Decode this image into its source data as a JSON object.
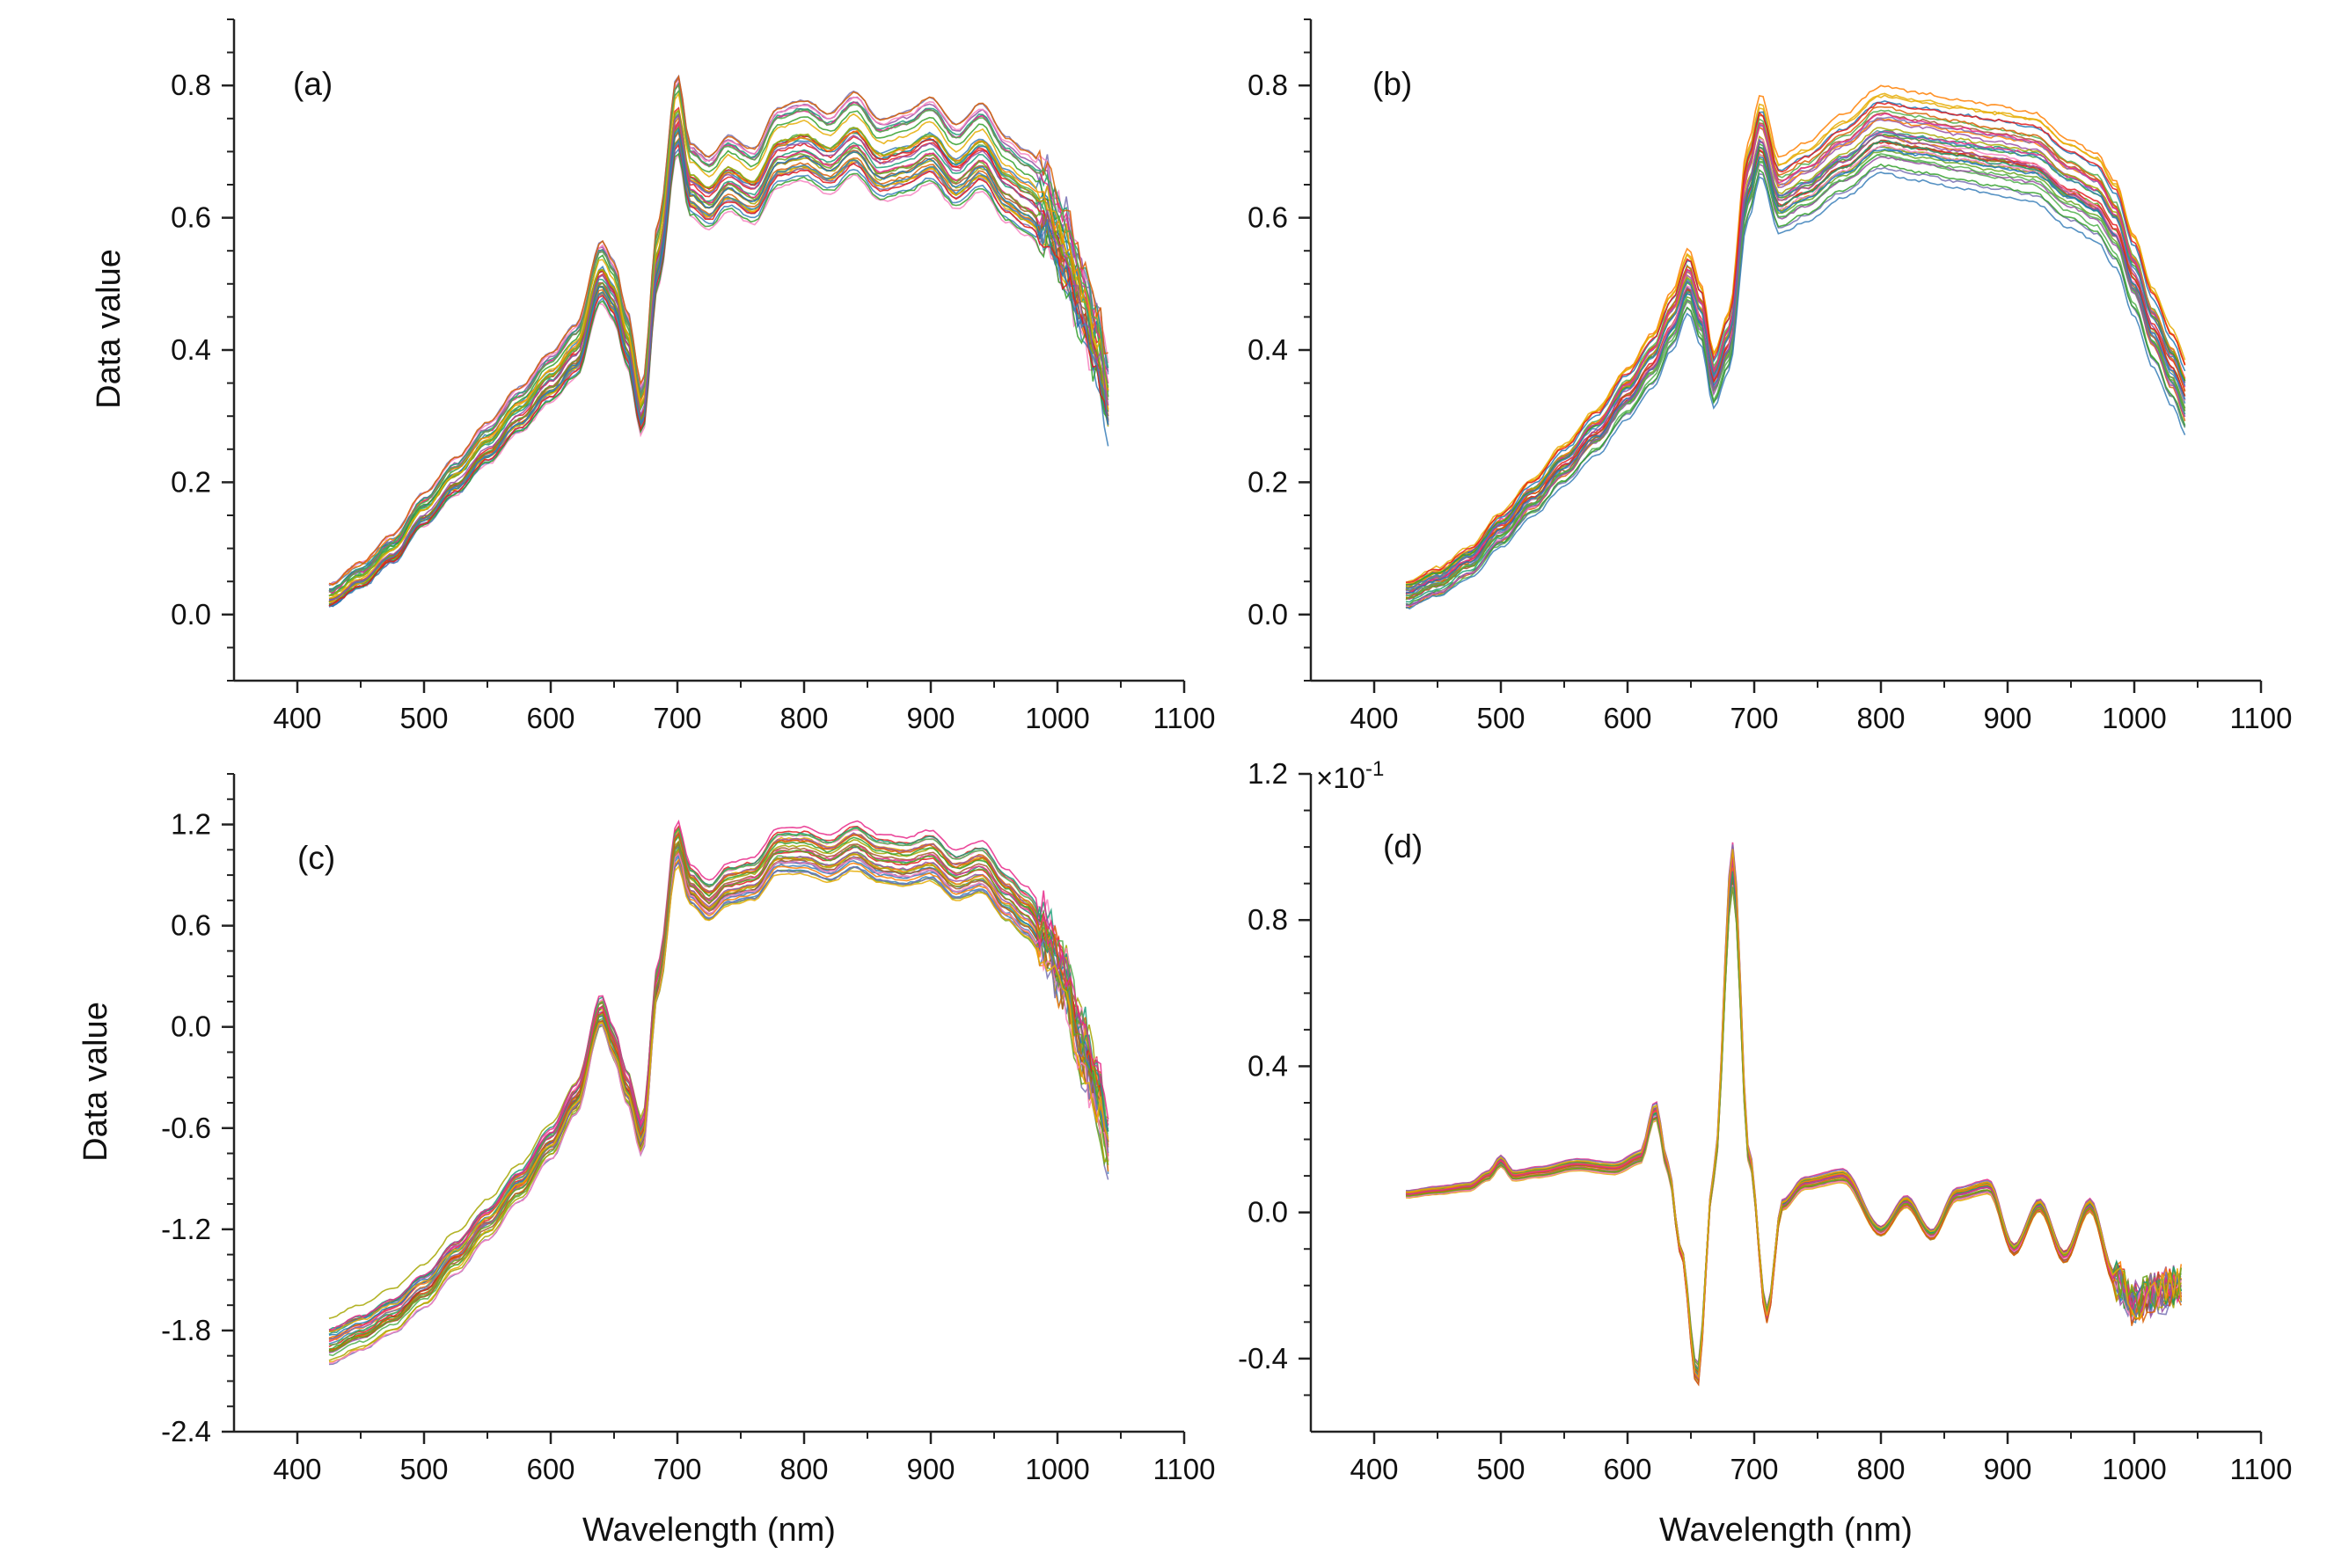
{
  "figure": {
    "x_axis_title": "Wavelength (nm)",
    "y_axis_title": "Data value"
  },
  "chart_data": [
    {
      "id": "a",
      "type": "line",
      "panel_label": "(a)",
      "xlabel": "",
      "ylabel": "Data value",
      "xlim": [
        350,
        1100
      ],
      "ylim": [
        -0.1,
        0.9
      ],
      "xticks": [
        "400",
        "500",
        "600",
        "700",
        "800",
        "900",
        "1000",
        "1100"
      ],
      "yticks": [
        "0.0",
        "0.2",
        "0.4",
        "0.6",
        "0.8"
      ],
      "ytick_values": [
        0.0,
        0.2,
        0.4,
        0.6,
        0.8
      ],
      "x_range_data": [
        425,
        1042
      ],
      "series_count": 36,
      "spread": 0.05,
      "noise_end": 0.04,
      "series_colors": [
        "#e41a1c",
        "#377eb8",
        "#4daf4a",
        "#984ea3",
        "#ff7f00",
        "#a6a600",
        "#a65628",
        "#f781bf",
        "#1b9e77",
        "#d95f02",
        "#7570b3",
        "#e7298a",
        "#66a61e",
        "#e6ab02",
        "#1f78b4",
        "#33a02c"
      ],
      "mean_profile": {
        "x": [
          425,
          450,
          475,
          500,
          525,
          550,
          575,
          600,
          620,
          640,
          650,
          660,
          672,
          685,
          700,
          710,
          725,
          740,
          760,
          780,
          800,
          820,
          840,
          860,
          880,
          900,
          920,
          940,
          960,
          975,
          990,
          1005,
          1020,
          1030,
          1042
        ],
        "y": [
          0.03,
          0.06,
          0.1,
          0.16,
          0.21,
          0.26,
          0.31,
          0.36,
          0.4,
          0.52,
          0.49,
          0.42,
          0.31,
          0.55,
          0.76,
          0.66,
          0.64,
          0.67,
          0.65,
          0.71,
          0.72,
          0.7,
          0.73,
          0.69,
          0.7,
          0.72,
          0.68,
          0.71,
          0.66,
          0.64,
          0.62,
          0.56,
          0.48,
          0.42,
          0.32
        ]
      }
    },
    {
      "id": "b",
      "type": "line",
      "panel_label": "(b)",
      "xlabel": "",
      "ylabel": "",
      "xlim": [
        350,
        1100
      ],
      "ylim": [
        -0.1,
        0.9
      ],
      "xticks": [
        "400",
        "500",
        "600",
        "700",
        "800",
        "900",
        "1000",
        "1100"
      ],
      "yticks": [
        "0.0",
        "0.2",
        "0.4",
        "0.6",
        "0.8"
      ],
      "ytick_values": [
        0.0,
        0.2,
        0.4,
        0.6,
        0.8
      ],
      "x_range_data": [
        425,
        1042
      ],
      "series_count": 36,
      "spread": 0.05,
      "noise_end": 0.0,
      "series_colors": [
        "#e41a1c",
        "#377eb8",
        "#4daf4a",
        "#984ea3",
        "#ff7f00",
        "#a6a600",
        "#a65628",
        "#f781bf",
        "#1b9e77",
        "#d95f02",
        "#7570b3",
        "#e7298a",
        "#66a61e",
        "#e6ab02",
        "#1f78b4",
        "#33a02c"
      ],
      "mean_profile": {
        "x": [
          425,
          450,
          475,
          500,
          525,
          550,
          575,
          600,
          620,
          635,
          648,
          658,
          668,
          680,
          695,
          705,
          720,
          740,
          770,
          800,
          830,
          860,
          890,
          920,
          950,
          970,
          985,
          1000,
          1015,
          1030,
          1042
        ],
        "y": [
          0.03,
          0.05,
          0.08,
          0.13,
          0.18,
          0.23,
          0.28,
          0.34,
          0.39,
          0.45,
          0.51,
          0.46,
          0.36,
          0.42,
          0.66,
          0.73,
          0.64,
          0.66,
          0.7,
          0.74,
          0.73,
          0.72,
          0.71,
          0.7,
          0.66,
          0.64,
          0.6,
          0.52,
          0.44,
          0.38,
          0.33
        ]
      }
    },
    {
      "id": "c",
      "type": "line",
      "panel_label": "(c)",
      "xlabel": "Wavelength (nm)",
      "ylabel": "Data value",
      "xlim": [
        350,
        1100
      ],
      "ylim": [
        -2.4,
        1.5
      ],
      "xticks": [
        "400",
        "500",
        "600",
        "700",
        "800",
        "900",
        "1000",
        "1100"
      ],
      "yticks": [
        "-2.4",
        "-1.8",
        "-1.2",
        "-0.6",
        "0.0",
        "0.6",
        "1.2"
      ],
      "ytick_values": [
        -2.4,
        -1.8,
        -1.2,
        -0.6,
        0.0,
        0.6,
        1.2
      ],
      "x_range_data": [
        425,
        1042
      ],
      "series_count": 30,
      "spread": 0.15,
      "noise_end": 0.25,
      "series_colors": [
        "#e41a1c",
        "#377eb8",
        "#4daf4a",
        "#984ea3",
        "#ff7f00",
        "#a6a600",
        "#a65628",
        "#f781bf",
        "#1b9e77",
        "#d95f02",
        "#7570b3",
        "#e7298a",
        "#66a61e",
        "#e6ab02",
        "#1f78b4",
        "#33a02c"
      ],
      "mean_profile": {
        "x": [
          425,
          450,
          475,
          500,
          525,
          550,
          575,
          600,
          620,
          640,
          650,
          660,
          672,
          685,
          700,
          710,
          725,
          740,
          760,
          780,
          800,
          820,
          840,
          860,
          880,
          900,
          920,
          940,
          960,
          975,
          990,
          1005,
          1020,
          1030,
          1042
        ],
        "y": [
          -1.88,
          -1.8,
          -1.7,
          -1.55,
          -1.35,
          -1.15,
          -0.93,
          -0.68,
          -0.42,
          0.1,
          -0.1,
          -0.35,
          -0.65,
          0.3,
          1.1,
          0.85,
          0.75,
          0.85,
          0.88,
          1.05,
          1.05,
          1.0,
          1.08,
          1.0,
          0.98,
          1.02,
          0.9,
          0.95,
          0.78,
          0.68,
          0.55,
          0.3,
          -0.1,
          -0.35,
          -0.7
        ]
      }
    },
    {
      "id": "d",
      "type": "line",
      "panel_label": "(d)",
      "xlabel": "Wavelength (nm)",
      "ylabel": "",
      "xlim": [
        350,
        1100
      ],
      "ylim": [
        -0.6,
        1.2
      ],
      "axis_multiplier": "×10",
      "axis_multiplier_exponent": "-1",
      "xticks": [
        "400",
        "500",
        "600",
        "700",
        "800",
        "900",
        "1000",
        "1100"
      ],
      "yticks": [
        "-0.4",
        "0.0",
        "0.4",
        "0.8",
        "1.2"
      ],
      "ytick_values": [
        -0.4,
        0.0,
        0.4,
        0.8,
        1.2
      ],
      "x_range_data": [
        425,
        1038
      ],
      "series_count": 30,
      "spread": 0.02,
      "noise_end": 0.1,
      "series_colors": [
        "#e41a1c",
        "#377eb8",
        "#4daf4a",
        "#984ea3",
        "#ff7f00",
        "#a6a600",
        "#a65628",
        "#f781bf",
        "#1b9e77",
        "#d95f02",
        "#7570b3",
        "#e7298a",
        "#66a61e",
        "#e6ab02",
        "#1f78b4",
        "#33a02c"
      ],
      "mean_profile": {
        "x": [
          425,
          450,
          475,
          490,
          500,
          510,
          530,
          560,
          590,
          610,
          622,
          632,
          642,
          655,
          668,
          683,
          696,
          710,
          722,
          740,
          770,
          800,
          820,
          840,
          860,
          885,
          905,
          925,
          945,
          965,
          985,
          1000,
          1015,
          1038
        ],
        "y": [
          0.05,
          0.06,
          0.07,
          0.1,
          0.14,
          0.1,
          0.11,
          0.13,
          0.12,
          0.15,
          0.28,
          0.12,
          -0.1,
          -0.45,
          0.1,
          0.95,
          0.15,
          -0.28,
          0.02,
          0.08,
          0.1,
          -0.05,
          0.03,
          -0.06,
          0.05,
          0.07,
          -0.1,
          0.02,
          -0.12,
          0.02,
          -0.18,
          -0.25,
          -0.22,
          -0.2
        ]
      }
    }
  ]
}
